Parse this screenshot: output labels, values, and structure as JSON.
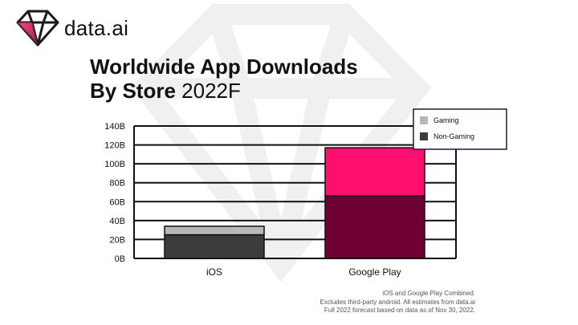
{
  "brand": {
    "logo_text": "data.ai"
  },
  "title": {
    "line1": "Worldwide App Downloads",
    "line2_bold": "By Store",
    "line2_light": "2022F"
  },
  "footnote": {
    "line1": "iOS and Google Play Combined.",
    "line2": "Excludes third-party android. All estimates from data.ai",
    "line3": "Full 2022 forecast based on data as of Nov 30, 2022."
  },
  "colors": {
    "ios_gaming": "#b8b8b8",
    "ios_non_gaming": "#3c3c3c",
    "gp_gaming": "#ff0f6e",
    "gp_non_gaming": "#6e0033",
    "legend_gaming": "#b8b8b8",
    "legend_non_gaming": "#3c3c3c"
  },
  "chart_data": {
    "type": "bar",
    "stacked": true,
    "categories": [
      "iOS",
      "Google Play"
    ],
    "series": [
      {
        "name": "Non-Gaming",
        "values": [
          25,
          66
        ]
      },
      {
        "name": "Gaming",
        "values": [
          9,
          51
        ]
      }
    ],
    "ylim": [
      0,
      140
    ],
    "yticks": [
      0,
      20,
      40,
      60,
      80,
      100,
      120,
      140
    ],
    "ytick_labels": [
      "0B",
      "20B",
      "40B",
      "60B",
      "80B",
      "100B",
      "120B",
      "140B"
    ],
    "grid": true,
    "legend_position": "top-right",
    "xlabel": "",
    "ylabel": ""
  }
}
